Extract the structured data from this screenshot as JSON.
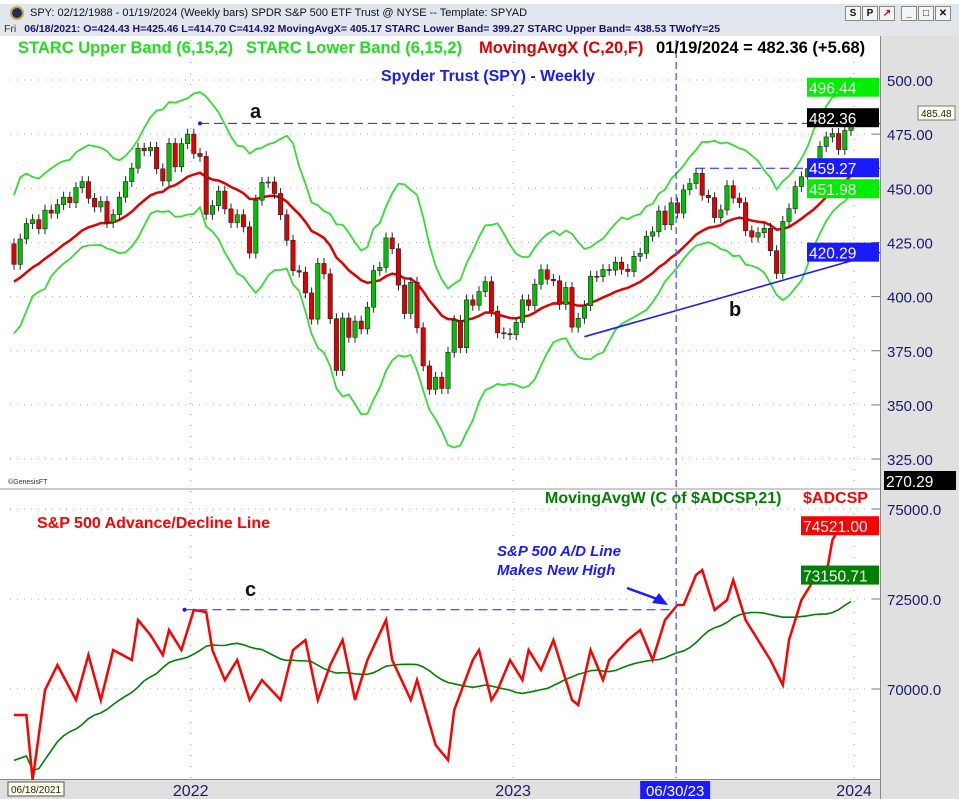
{
  "window": {
    "title": "SPY:  02/12/1988 - 01/19/2024  (Weekly bars)   SPDR S&P 500 ETF Trust @ NYSE  --  Template: SPYAD",
    "buttons": [
      "S",
      "P",
      "↗",
      "_",
      "□",
      "✕"
    ]
  },
  "infobar": {
    "day": "Fri",
    "text": "06/18/2021:  O=424.43  H=425.46  L=414.70  C=414.92  MovingAvgX= 405.17  STARC Lower Band= 399.27  STARC Upper Band= 438.53  TWofY=25"
  },
  "legend": {
    "upper": "STARC Upper Band (6,15,2)",
    "lower": "STARC Lower Band (6,15,2)",
    "ma": "MovingAvgX (C,20,F)",
    "last": "01/19/2024 = 482.36 (+5.68)",
    "ad_ma": "MovingAvgW (C of $ADCSP,21)",
    "ad": "$ADCSP"
  },
  "colors": {
    "up": "#00c000",
    "down": "#e00000",
    "band": "#33dd33",
    "ma": "#e00000",
    "blue": "#1a1aff",
    "admA": "#008000",
    "ad": "#ff0000"
  },
  "chart_data": [
    {
      "type": "candlestick",
      "title": "Spyder Trust (SPY) - Weekly",
      "start_date": "06/18/2021",
      "end_date": "01/19/2024",
      "ylim": [
        312,
        510
      ],
      "yticks": [
        500,
        475,
        450,
        425,
        400,
        375,
        350,
        325
      ],
      "closes": [
        414.9,
        426.6,
        433.7,
        435.5,
        431.3,
        439.9,
        438.5,
        442.5,
        445.9,
        443.4,
        450.3,
        453.1,
        445.4,
        441.4,
        443.9,
        434.2,
        437.9,
        445.9,
        453.1,
        459.3,
        468.5,
        467.3,
        468.9,
        459.0,
        453.4,
        470.7,
        459.9,
        470.6,
        475.0,
        466.1,
        464.7,
        438.0,
        442.0,
        448.7,
        440.5,
        434.2,
        437.8,
        432.2,
        420.1,
        444.5,
        452.7,
        452.9,
        447.6,
        437.8,
        426.0,
        412.0,
        411.3,
        401.7,
        389.6,
        415.3,
        410.5,
        389.8,
        365.9,
        390.1,
        381.2,
        388.7,
        385.1,
        395.1,
        412.0,
        413.5,
        427.1,
        422.1,
        405.3,
        392.2,
        406.6,
        385.6,
        368.0,
        357.2,
        362.8,
        357.6,
        374.3,
        389.0,
        376.4,
        398.5,
        396.0,
        402.3,
        406.9,
        393.3,
        383.3,
        382.9,
        382.4,
        388.1,
        398.5,
        395.9,
        405.7,
        412.4,
        408.0,
        407.3,
        396.4,
        404.2,
        385.9,
        390.0,
        395.8,
        409.4,
        409.2,
        412.5,
        412.2,
        415.9,
        412.6,
        411.6,
        418.6,
        420.0,
        427.9,
        429.9,
        439.5,
        433.2,
        443.3,
        438.6,
        449.3,
        452.2,
        456.9,
        446.8,
        445.7,
        436.5,
        440.0,
        451.2,
        445.5,
        443.4,
        430.4,
        427.5,
        429.5,
        431.5,
        421.2,
        410.7,
        434.7,
        440.6,
        450.8,
        455.3,
        459.1,
        460.2,
        469.3,
        473.7,
        475.3,
        467.9,
        476.7,
        482.4
      ],
      "axis_labels": [
        {
          "text": "496.44",
          "kind": "band",
          "value": 496.44
        },
        {
          "text": "482.36",
          "kind": "last",
          "value": 482.36
        },
        {
          "text": "459.27",
          "kind": "line",
          "value": 459.27
        },
        {
          "text": "451.98",
          "kind": "band",
          "value": 451.98
        },
        {
          "text": "420.29",
          "kind": "line",
          "value": 420.29
        },
        {
          "text": "270.29",
          "kind": "last",
          "value": 270.29
        }
      ],
      "tooltip": "485.48",
      "annotations": {
        "a": "a",
        "b": "b",
        "a_level": 479.98,
        "b_line": [
          [
            92,
            381.5
          ],
          [
            140,
            425
          ]
        ],
        "b_last": 420.29,
        "resistance": 459.27,
        "credit": "©GenesisFT"
      }
    },
    {
      "type": "line",
      "title": "S&P 500 Advance/Decline Line",
      "ylim": [
        67200,
        75800
      ],
      "yticks": [
        75000,
        72500,
        70000
      ],
      "ad_line": [
        [
          0,
          69278
        ],
        [
          2,
          69278
        ],
        [
          3,
          67472
        ],
        [
          5,
          69972
        ],
        [
          7,
          70667
        ],
        [
          10,
          69694
        ],
        [
          12,
          70944
        ],
        [
          14,
          69694
        ],
        [
          16,
          71083
        ],
        [
          19,
          70806
        ],
        [
          20,
          71917
        ],
        [
          22,
          71500
        ],
        [
          24,
          70944
        ],
        [
          25,
          71639
        ],
        [
          27,
          71083
        ],
        [
          29,
          72194
        ],
        [
          31,
          72139
        ],
        [
          32,
          71083
        ],
        [
          34,
          70250
        ],
        [
          36,
          70806
        ],
        [
          38,
          69694
        ],
        [
          40,
          70250
        ],
        [
          43,
          69694
        ],
        [
          45,
          71083
        ],
        [
          47,
          71361
        ],
        [
          49,
          69694
        ],
        [
          51,
          70667
        ],
        [
          53,
          71361
        ],
        [
          55,
          69694
        ],
        [
          57,
          70806
        ],
        [
          60,
          71917
        ],
        [
          61,
          70806
        ],
        [
          64,
          69694
        ],
        [
          65,
          70250
        ],
        [
          68,
          68444
        ],
        [
          70,
          68028
        ],
        [
          71,
          69417
        ],
        [
          74,
          70806
        ],
        [
          75,
          71083
        ],
        [
          77,
          69694
        ],
        [
          78,
          69972
        ],
        [
          80,
          70806
        ],
        [
          82,
          70250
        ],
        [
          83,
          71083
        ],
        [
          85,
          70528
        ],
        [
          87,
          71361
        ],
        [
          90,
          69694
        ],
        [
          91,
          69556
        ],
        [
          93,
          71083
        ],
        [
          95,
          70250
        ],
        [
          96,
          70806
        ],
        [
          99,
          71361
        ],
        [
          101,
          71639
        ],
        [
          103,
          70806
        ],
        [
          105,
          71917
        ],
        [
          107,
          72333
        ],
        [
          108,
          72333
        ],
        [
          110,
          73167
        ],
        [
          111,
          73306
        ],
        [
          113,
          72194
        ],
        [
          115,
          72472
        ],
        [
          116,
          73028
        ],
        [
          118,
          71917
        ],
        [
          120,
          71361
        ],
        [
          122,
          70806
        ],
        [
          124,
          70111
        ],
        [
          125,
          71361
        ],
        [
          127,
          72472
        ],
        [
          129,
          73028
        ],
        [
          131,
          73167
        ],
        [
          132,
          74139
        ],
        [
          134,
          74750
        ],
        [
          135,
          74521
        ]
      ],
      "axis_labels": [
        {
          "text": "74521.00",
          "kind": "ad",
          "value": 74521
        },
        {
          "text": "73150.71",
          "kind": "adma",
          "value": 73150.71
        }
      ],
      "annotations": {
        "c": "c",
        "c_level": 72200,
        "note_line1": "S&P 500 A/D Line",
        "note_line2": "Makes New High"
      }
    }
  ],
  "xaxis": {
    "labels": [
      {
        "text": "2022",
        "week": 28.5
      },
      {
        "text": "2023",
        "week": 80.5
      },
      {
        "text": "2024",
        "week": 135.5
      }
    ],
    "cursor_date": "06/18/2021",
    "marker_date": "06/30/23",
    "marker_week": 106.8
  }
}
